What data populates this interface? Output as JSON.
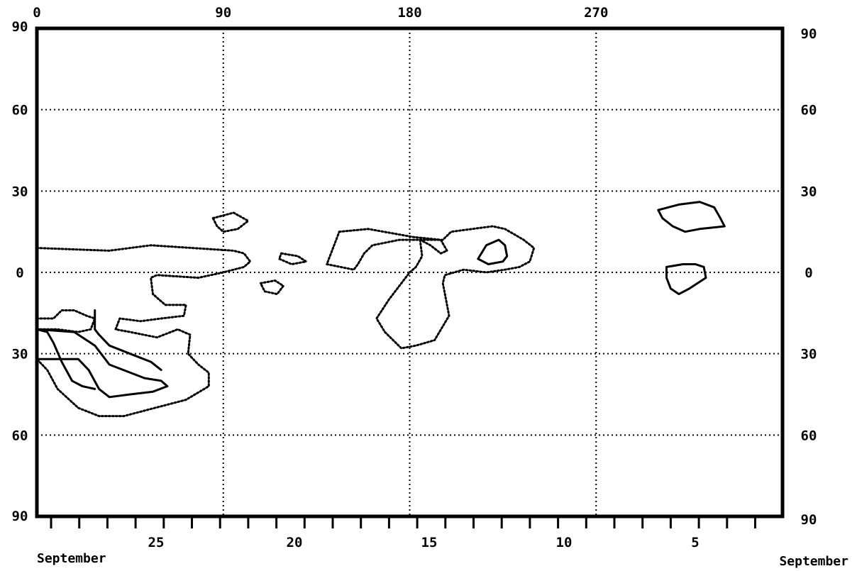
{
  "chart_data": {
    "type": "contour",
    "x_top_ticks": [
      "0",
      "90",
      "180",
      "270"
    ],
    "y_left_ticks": [
      "90",
      "60",
      "30",
      "0",
      "30",
      "60",
      "90"
    ],
    "y_right_ticks": [
      "90",
      "60",
      "30",
      "0",
      "30",
      "60",
      "90"
    ],
    "x_bottom_ticks": [
      "25",
      "20",
      "15",
      "10",
      "5"
    ],
    "x_bottom_label_left": "September",
    "x_bottom_label_right": "September",
    "xlim": [
      0,
      360
    ],
    "ylim": [
      -90,
      90
    ],
    "grid": true,
    "contour_color": "#000000",
    "contours": [
      {
        "style": "dotted",
        "points": [
          [
            0,
            9
          ],
          [
            35,
            8
          ],
          [
            55,
            10
          ],
          [
            75,
            9
          ],
          [
            95,
            8
          ],
          [
            100,
            7
          ],
          [
            103,
            4
          ],
          [
            100,
            2
          ],
          [
            90,
            0
          ],
          [
            78,
            -2
          ],
          [
            58,
            -1
          ],
          [
            55,
            -2
          ],
          [
            56,
            -8
          ],
          [
            62,
            -12
          ],
          [
            72,
            -12
          ],
          [
            71,
            -16
          ],
          [
            60,
            -17
          ],
          [
            50,
            -18
          ],
          [
            40,
            -17
          ],
          [
            38,
            -21
          ],
          [
            45,
            -22
          ],
          [
            58,
            -24
          ],
          [
            68,
            -21
          ],
          [
            74,
            -23
          ],
          [
            73,
            -30
          ],
          [
            78,
            -34
          ],
          [
            83,
            -37
          ],
          [
            83,
            -42
          ],
          [
            72,
            -47
          ],
          [
            52,
            -51
          ],
          [
            42,
            -53
          ],
          [
            30,
            -53
          ],
          [
            20,
            -50
          ],
          [
            10,
            -43
          ],
          [
            5,
            -36
          ],
          [
            0,
            -32
          ]
        ]
      },
      {
        "style": "solid",
        "points": [
          [
            0,
            -21
          ],
          [
            18,
            -22
          ],
          [
            28,
            -27
          ],
          [
            35,
            -34
          ],
          [
            52,
            -39
          ],
          [
            60,
            -40
          ],
          [
            63,
            -42
          ],
          [
            56,
            -44
          ],
          [
            45,
            -45
          ],
          [
            35,
            -46
          ],
          [
            30,
            -43
          ],
          [
            25,
            -36
          ],
          [
            20,
            -32
          ],
          [
            10,
            -32
          ],
          [
            0,
            -32
          ]
        ]
      },
      {
        "style": "dotted",
        "points": [
          [
            0,
            -17
          ],
          [
            8,
            -17
          ],
          [
            12,
            -14
          ],
          [
            18,
            -14
          ],
          [
            24,
            -16
          ],
          [
            28,
            -17
          ],
          [
            26,
            -21
          ],
          [
            20,
            -22
          ],
          [
            10,
            -21
          ],
          [
            0,
            -21
          ]
        ]
      },
      {
        "style": "solid",
        "points": [
          [
            0,
            -21
          ],
          [
            5,
            -22
          ],
          [
            8,
            -26
          ],
          [
            12,
            -33
          ],
          [
            17,
            -40
          ],
          [
            22,
            -42
          ],
          [
            28,
            -43
          ]
        ]
      },
      {
        "style": "solid",
        "points": [
          [
            28,
            -14
          ],
          [
            28,
            -21
          ],
          [
            30,
            -23
          ],
          [
            35,
            -27
          ],
          [
            45,
            -30
          ],
          [
            55,
            -33
          ],
          [
            60,
            -36
          ]
        ]
      },
      {
        "style": "dotted",
        "points": [
          [
            85,
            20
          ],
          [
            95,
            22
          ],
          [
            102,
            19
          ],
          [
            97,
            16
          ],
          [
            90,
            15
          ],
          [
            87,
            17
          ],
          [
            85,
            20
          ]
        ]
      },
      {
        "style": "dotted",
        "points": [
          [
            118,
            7
          ],
          [
            126,
            6
          ],
          [
            130,
            4
          ],
          [
            123,
            3
          ],
          [
            117,
            5
          ],
          [
            118,
            7
          ]
        ]
      },
      {
        "style": "dotted",
        "points": [
          [
            108,
            -4
          ],
          [
            115,
            -3
          ],
          [
            119,
            -5
          ],
          [
            116,
            -8
          ],
          [
            110,
            -7
          ],
          [
            108,
            -4
          ]
        ]
      },
      {
        "style": "dotted",
        "points": [
          [
            146,
            15
          ],
          [
            160,
            16
          ],
          [
            182,
            13
          ],
          [
            195,
            12
          ],
          [
            198,
            8
          ],
          [
            195,
            7
          ],
          [
            190,
            10
          ],
          [
            185,
            12
          ],
          [
            175,
            12
          ],
          [
            162,
            10
          ],
          [
            158,
            7
          ],
          [
            155,
            3
          ],
          [
            153,
            1
          ],
          [
            140,
            3
          ],
          [
            144,
            11
          ],
          [
            146,
            15
          ]
        ]
      },
      {
        "style": "dotted",
        "points": [
          [
            185,
            12
          ],
          [
            196,
            12
          ],
          [
            200,
            15
          ],
          [
            220,
            17
          ],
          [
            226,
            16
          ],
          [
            235,
            12
          ],
          [
            240,
            9
          ],
          [
            238,
            4
          ],
          [
            233,
            2
          ],
          [
            226,
            1
          ],
          [
            217,
            0
          ],
          [
            206,
            1
          ],
          [
            197,
            -1
          ],
          [
            196,
            -4
          ],
          [
            198,
            -12
          ],
          [
            199,
            -16
          ],
          [
            192,
            -25
          ],
          [
            183,
            -27
          ],
          [
            176,
            -28
          ],
          [
            168,
            -22
          ],
          [
            164,
            -17
          ],
          [
            170,
            -10
          ],
          [
            177,
            -3
          ],
          [
            180,
            0
          ],
          [
            183,
            2
          ],
          [
            186,
            6
          ],
          [
            185,
            12
          ]
        ]
      },
      {
        "style": "solid",
        "points": [
          [
            213,
            5
          ],
          [
            217,
            10
          ],
          [
            223,
            12
          ],
          [
            226,
            10
          ],
          [
            227,
            6
          ],
          [
            225,
            4
          ],
          [
            218,
            3
          ],
          [
            213,
            5
          ]
        ]
      },
      {
        "style": "solid",
        "points": [
          [
            300,
            23
          ],
          [
            310,
            25
          ],
          [
            320,
            26
          ],
          [
            327,
            24
          ],
          [
            330,
            20
          ],
          [
            332,
            17
          ],
          [
            320,
            16
          ],
          [
            313,
            15
          ],
          [
            307,
            17
          ],
          [
            302,
            20
          ],
          [
            300,
            23
          ]
        ]
      },
      {
        "style": "solid",
        "points": [
          [
            304,
            2
          ],
          [
            312,
            3
          ],
          [
            318,
            3
          ],
          [
            322,
            2
          ],
          [
            323,
            -2
          ],
          [
            319,
            -4
          ],
          [
            315,
            -6
          ],
          [
            310,
            -8
          ],
          [
            306,
            -6
          ],
          [
            304,
            -2
          ],
          [
            304,
            2
          ]
        ]
      }
    ]
  }
}
